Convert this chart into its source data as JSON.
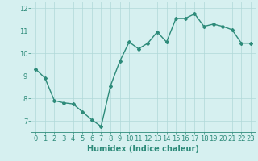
{
  "x": [
    0,
    1,
    2,
    3,
    4,
    5,
    6,
    7,
    8,
    9,
    10,
    11,
    12,
    13,
    14,
    15,
    16,
    17,
    18,
    19,
    20,
    21,
    22,
    23
  ],
  "y": [
    9.3,
    8.9,
    7.9,
    7.8,
    7.75,
    7.4,
    7.05,
    6.75,
    8.55,
    9.65,
    10.5,
    10.2,
    10.45,
    10.95,
    10.5,
    11.55,
    11.55,
    11.75,
    11.2,
    11.3,
    11.2,
    11.05,
    10.45,
    10.45
  ],
  "line_color": "#2e8b7a",
  "marker": "D",
  "marker_size": 2.0,
  "background_color": "#d6f0f0",
  "grid_color": "#b0d8d8",
  "xlabel": "Humidex (Indice chaleur)",
  "xlim": [
    -0.5,
    23.5
  ],
  "ylim": [
    6.5,
    12.3
  ],
  "yticks": [
    7,
    8,
    9,
    10,
    11,
    12
  ],
  "xticks": [
    0,
    1,
    2,
    3,
    4,
    5,
    6,
    7,
    8,
    9,
    10,
    11,
    12,
    13,
    14,
    15,
    16,
    17,
    18,
    19,
    20,
    21,
    22,
    23
  ],
  "xlabel_fontsize": 7,
  "tick_fontsize": 6,
  "linewidth": 1.0
}
